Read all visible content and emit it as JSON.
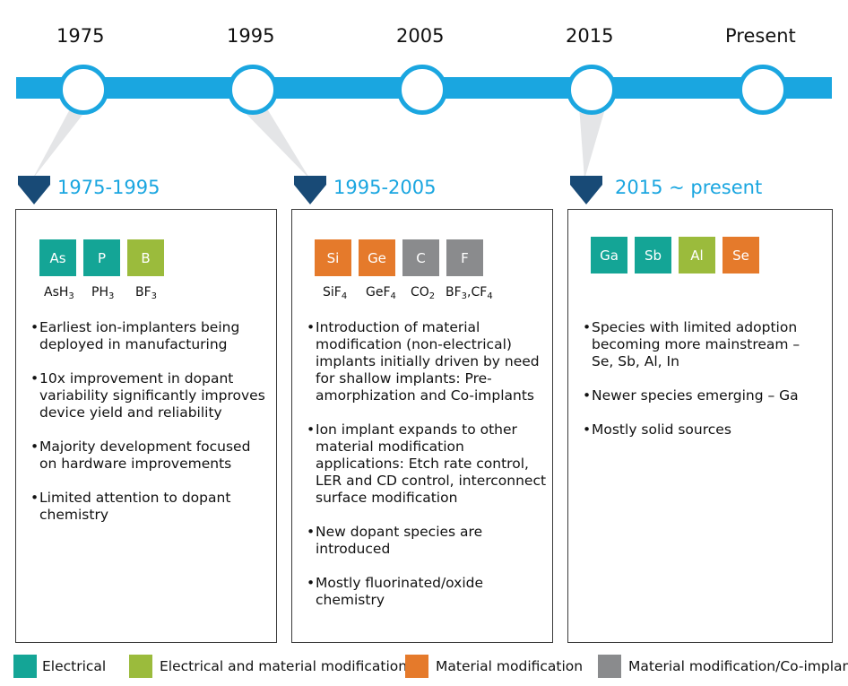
{
  "colors": {
    "timeline": "#1aa6e0",
    "arrow": "#184a76",
    "electrical": "#14a596",
    "electrical_material": "#9bbb3c",
    "material": "#e57a2b",
    "co_implant": "#8a8b8d"
  },
  "timeline": {
    "years": [
      "1975",
      "1995",
      "2005",
      "2015",
      "Present"
    ]
  },
  "panels": [
    {
      "period": "1975-1995",
      "tiles": [
        {
          "label": "As",
          "category": "electrical"
        },
        {
          "label": "P",
          "category": "electrical"
        },
        {
          "label": "B",
          "category": "electrical_material"
        }
      ],
      "formulas": [
        {
          "base": "AsH",
          "sub": "3"
        },
        {
          "base": "PH",
          "sub": "3"
        },
        {
          "base": "BF",
          "sub": "3"
        }
      ],
      "bullets": [
        "Earliest ion-implanters being deployed in manufacturing",
        "10x improvement in dopant variability significantly improves device yield and reliability",
        "Majority development focused on hardware improvements",
        "Limited attention to dopant chemistry"
      ]
    },
    {
      "period": "1995-2005",
      "tiles": [
        {
          "label": "Si",
          "category": "material"
        },
        {
          "label": "Ge",
          "category": "material"
        },
        {
          "label": "C",
          "category": "co_implant"
        },
        {
          "label": "F",
          "category": "co_implant"
        }
      ],
      "formulas": [
        {
          "base": "SiF",
          "sub": "4"
        },
        {
          "base": "GeF",
          "sub": "4"
        },
        {
          "base": "CO",
          "sub": "2"
        },
        {
          "base": "BF",
          "sub": "3",
          "base2": ",CF",
          "sub2": "4"
        }
      ],
      "bullets": [
        "Introduction of material modification (non-electrical) implants initially driven by need for shallow implants: Pre-amorphization and Co-implants",
        "Ion implant expands to other material modification applications: Etch rate control, LER and CD control, interconnect surface modification",
        "New dopant species are introduced",
        "Mostly fluorinated/oxide chemistry"
      ]
    },
    {
      "period": "2015 ~ present",
      "tiles": [
        {
          "label": "Ga",
          "category": "electrical"
        },
        {
          "label": "Sb",
          "category": "electrical"
        },
        {
          "label": "Al",
          "category": "electrical_material"
        },
        {
          "label": "Se",
          "category": "material"
        }
      ],
      "bullets": [
        "Species with limited adoption becoming more mainstream – Se, Sb, Al, In",
        "Newer species emerging – Ga",
        "Mostly solid sources"
      ]
    }
  ],
  "legend": [
    {
      "label": "Electrical",
      "category": "electrical"
    },
    {
      "label": "Electrical and material modification",
      "category": "electrical_material"
    },
    {
      "label": "Material modification",
      "category": "material"
    },
    {
      "label": "Material modification/Co-implant",
      "category": "co_implant"
    }
  ]
}
